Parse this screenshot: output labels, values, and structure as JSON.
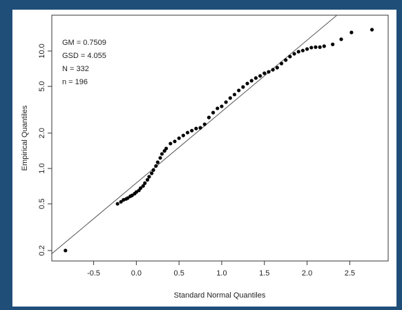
{
  "chart_data": {
    "type": "scatter",
    "x_label": "Standard Normal Quantiles",
    "y_label": "Empirical Quantiles",
    "annotations": [
      "GM = 0.7509",
      "GSD = 4.055",
      "N = 332",
      "n = 196"
    ],
    "log_y": true,
    "color": "#000000",
    "xlim": [
      -0.99,
      2.95
    ],
    "ylim": [
      0.163,
      20.2
    ],
    "xticks": [
      -0.5,
      {
        "value": 0,
        "label": "0.0"
      },
      0.5,
      {
        "value": 1,
        "label": "1.0"
      },
      1.5,
      {
        "value": 2,
        "label": "2.0"
      },
      2.5
    ],
    "yticks": [
      0.2,
      0.5,
      {
        "value": 1,
        "label": "1.0"
      },
      {
        "value": 2,
        "label": "2.0"
      },
      {
        "value": 5,
        "label": "5.0"
      },
      {
        "value": 10,
        "label": "10.0"
      }
    ],
    "x": [
      -0.83,
      -0.22,
      -0.18,
      -0.15,
      -0.12,
      -0.1,
      -0.07,
      -0.05,
      -0.02,
      0.0,
      0.03,
      0.05,
      0.08,
      0.1,
      0.13,
      0.15,
      0.18,
      0.2,
      0.23,
      0.25,
      0.28,
      0.3,
      0.33,
      0.35,
      0.4,
      0.45,
      0.5,
      0.55,
      0.6,
      0.65,
      0.7,
      0.75,
      0.8,
      0.85,
      0.9,
      0.95,
      1.0,
      1.05,
      1.1,
      1.15,
      1.2,
      1.25,
      1.3,
      1.35,
      1.4,
      1.45,
      1.5,
      1.55,
      1.6,
      1.65,
      1.7,
      1.75,
      1.8,
      1.85,
      1.9,
      1.95,
      2.0,
      2.05,
      2.1,
      2.15,
      2.2,
      2.3,
      2.4,
      2.52,
      2.76
    ],
    "values": [
      0.2,
      0.5,
      0.52,
      0.54,
      0.55,
      0.56,
      0.58,
      0.59,
      0.61,
      0.63,
      0.65,
      0.68,
      0.71,
      0.75,
      0.8,
      0.85,
      0.91,
      0.97,
      1.05,
      1.13,
      1.23,
      1.33,
      1.41,
      1.48,
      1.63,
      1.7,
      1.81,
      1.91,
      2.02,
      2.1,
      2.19,
      2.22,
      2.38,
      2.72,
      2.99,
      3.25,
      3.38,
      3.67,
      3.98,
      4.26,
      4.62,
      4.94,
      5.29,
      5.59,
      5.89,
      6.14,
      6.47,
      6.65,
      6.93,
      7.22,
      7.83,
      8.38,
      8.97,
      9.47,
      9.87,
      10.1,
      10.4,
      10.7,
      10.8,
      10.8,
      11.0,
      11.4,
      12.6,
      14.4,
      15.2
    ],
    "reference_line": {
      "x": [
        -0.99,
        2.35
      ],
      "y": [
        0.188,
        20.2
      ]
    }
  }
}
